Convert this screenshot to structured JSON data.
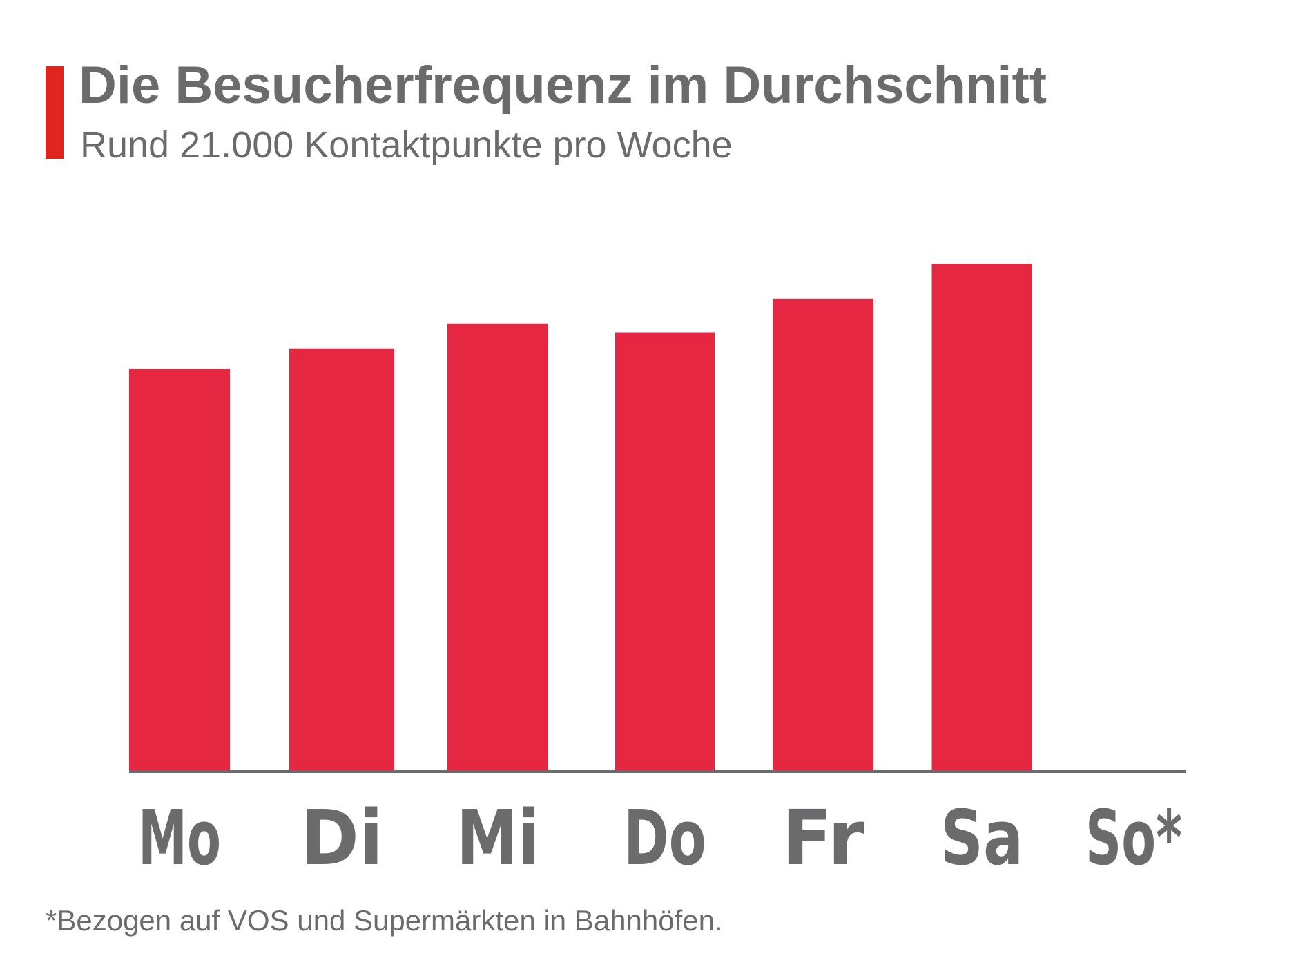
{
  "header": {
    "title": "Die Besucherfrequenz im Durchschnitt",
    "subtitle": "Rund 21.000 Kontaktpunkte pro Woche"
  },
  "footnote": "*Bezogen auf VOS und Supermärkten in Bahnhöfen.",
  "colors": {
    "accent": "#e0251f",
    "bar": "#e52742",
    "text": "#6b6b6d",
    "axis": "#6b6b6d"
  },
  "chart_data": {
    "type": "bar",
    "categories": [
      "Mo",
      "Di",
      "Mi",
      "Do",
      "Fr",
      "Sa",
      "So*"
    ],
    "values": [
      2750,
      2890,
      3060,
      3000,
      3230,
      3470,
      0
    ],
    "title": "Die Besucherfrequenz im Durchschnitt",
    "subtitle": "Rund 21.000 Kontaktpunkte pro Woche",
    "xlabel": "",
    "ylabel": "",
    "ylim": [
      0,
      4000
    ],
    "grid": false,
    "legend": "none"
  }
}
